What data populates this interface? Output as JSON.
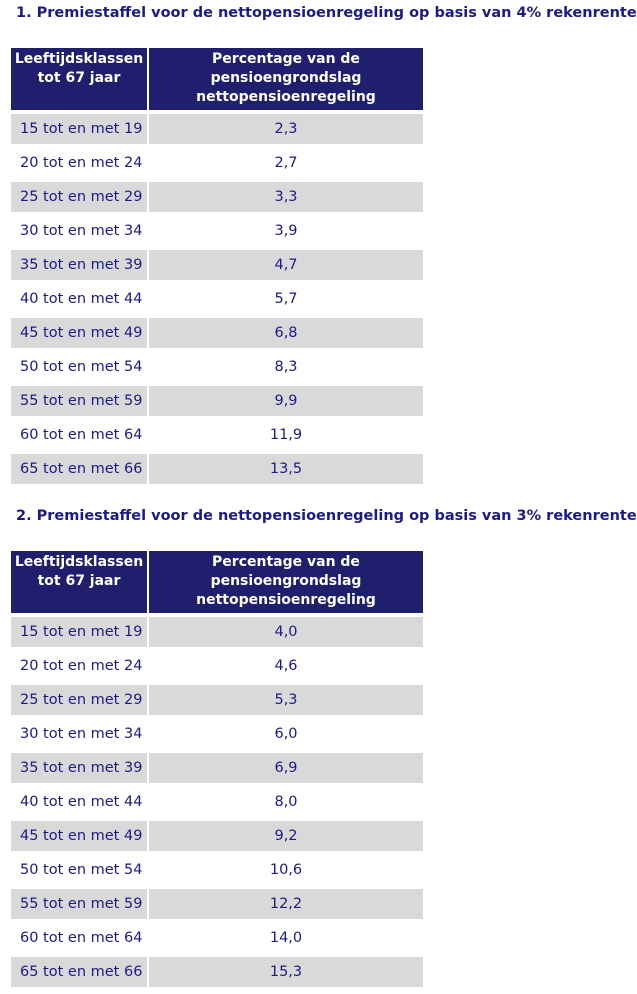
{
  "tables": [
    {
      "heading": "1. Premiestaffel voor de nettopensioenregeling op basis van 4% rekenrente",
      "col1_header_line1": "Leeftijdsklassen",
      "col1_header_line2": "tot 67 jaar",
      "col2_header_line1": "Percentage van de",
      "col2_header_line2": "pensioengrondslag",
      "col2_header_line3": "nettopensioenregeling",
      "rows": [
        {
          "age": "15 tot en met 19",
          "pct": "2,3"
        },
        {
          "age": "20 tot en met 24",
          "pct": "2,7"
        },
        {
          "age": "25 tot en met 29",
          "pct": "3,3"
        },
        {
          "age": "30 tot en met 34",
          "pct": "3,9"
        },
        {
          "age": "35 tot en met 39",
          "pct": "4,7"
        },
        {
          "age": "40 tot en met 44",
          "pct": "5,7"
        },
        {
          "age": "45 tot en met 49",
          "pct": "6,8"
        },
        {
          "age": "50 tot en met 54",
          "pct": "8,3"
        },
        {
          "age": "55 tot en met 59",
          "pct": "9,9"
        },
        {
          "age": "60 tot en met 64",
          "pct": "11,9"
        },
        {
          "age": "65 tot en met 66",
          "pct": "13,5"
        }
      ]
    },
    {
      "heading": "2. Premiestaffel voor de nettopensioenregeling op basis van 3% rekenrente",
      "col1_header_line1": "Leeftijdsklassen",
      "col1_header_line2": "tot 67 jaar",
      "col2_header_line1": "Percentage van de",
      "col2_header_line2": "pensioengrondslag",
      "col2_header_line3": "nettopensioenregeling",
      "rows": [
        {
          "age": "15 tot en met 19",
          "pct": "4,0"
        },
        {
          "age": "20 tot en met 24",
          "pct": "4,6"
        },
        {
          "age": "25 tot en met 29",
          "pct": "5,3"
        },
        {
          "age": "30 tot en met 34",
          "pct": "6,0"
        },
        {
          "age": "35 tot en met 39",
          "pct": "6,9"
        },
        {
          "age": "40 tot en met 44",
          "pct": "8,0"
        },
        {
          "age": "45 tot en met 49",
          "pct": "9,2"
        },
        {
          "age": "50 tot en met 54",
          "pct": "10,6"
        },
        {
          "age": "55 tot en met 59",
          "pct": "12,2"
        },
        {
          "age": "60 tot en met 64",
          "pct": "14,0"
        },
        {
          "age": "65 tot en met 66",
          "pct": "15,3"
        }
      ]
    }
  ],
  "colors": {
    "text": "#1a1a8a",
    "header_bg": "#1f1f6e",
    "shaded_row": "#d9d9d9",
    "plain_row": "#ffffff"
  }
}
